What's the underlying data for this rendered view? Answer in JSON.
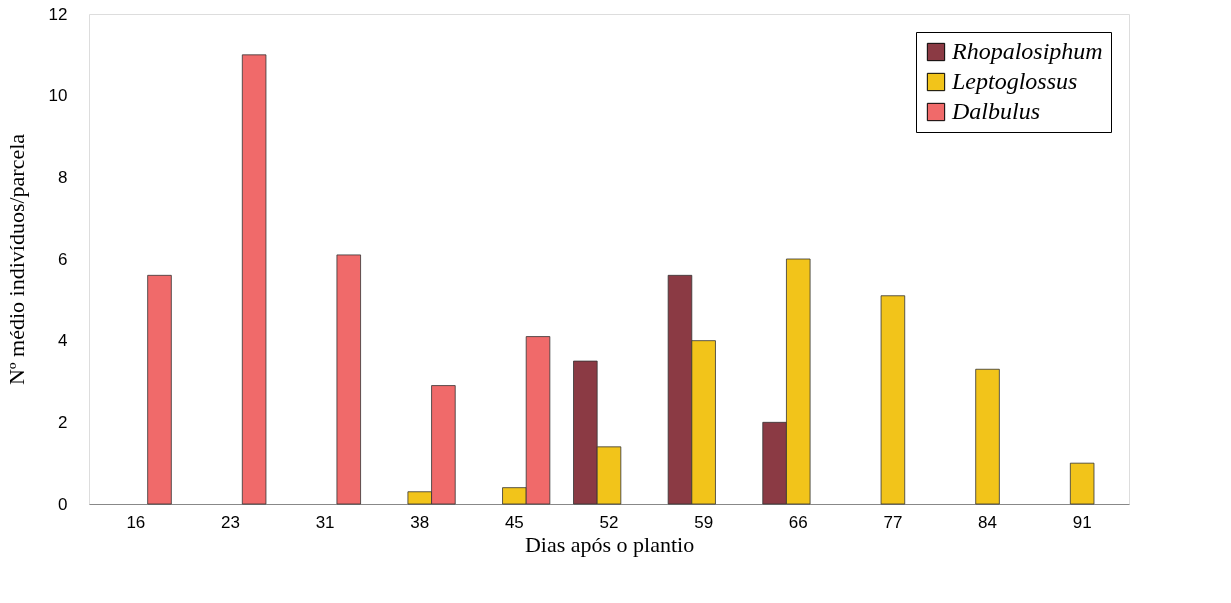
{
  "chart_data": {
    "type": "bar",
    "xlabel": "Dias após o plantio",
    "ylabel": "Nº médio indivíduos/parcela",
    "categories": [
      "16",
      "23",
      "31",
      "38",
      "45",
      "52",
      "59",
      "66",
      "77",
      "84",
      "91"
    ],
    "series": [
      {
        "name": "Rhopalosiphum",
        "color": "#8b3a44",
        "values": [
          null,
          null,
          null,
          null,
          null,
          3.5,
          5.6,
          2.0,
          null,
          null,
          null
        ]
      },
      {
        "name": "Leptoglossus",
        "color": "#f2c41a",
        "values": [
          null,
          null,
          null,
          0.3,
          0.4,
          1.4,
          4.0,
          6.0,
          5.1,
          3.3,
          1.0
        ]
      },
      {
        "name": "Dalbulus",
        "color": "#f06a6a",
        "values": [
          5.6,
          11.0,
          6.1,
          2.9,
          4.1,
          null,
          null,
          null,
          null,
          null,
          null
        ]
      }
    ],
    "ylim": [
      0,
      12
    ],
    "yticks": [
      0,
      2,
      4,
      6,
      8,
      10,
      12
    ],
    "grid": false,
    "legend": "top right"
  }
}
